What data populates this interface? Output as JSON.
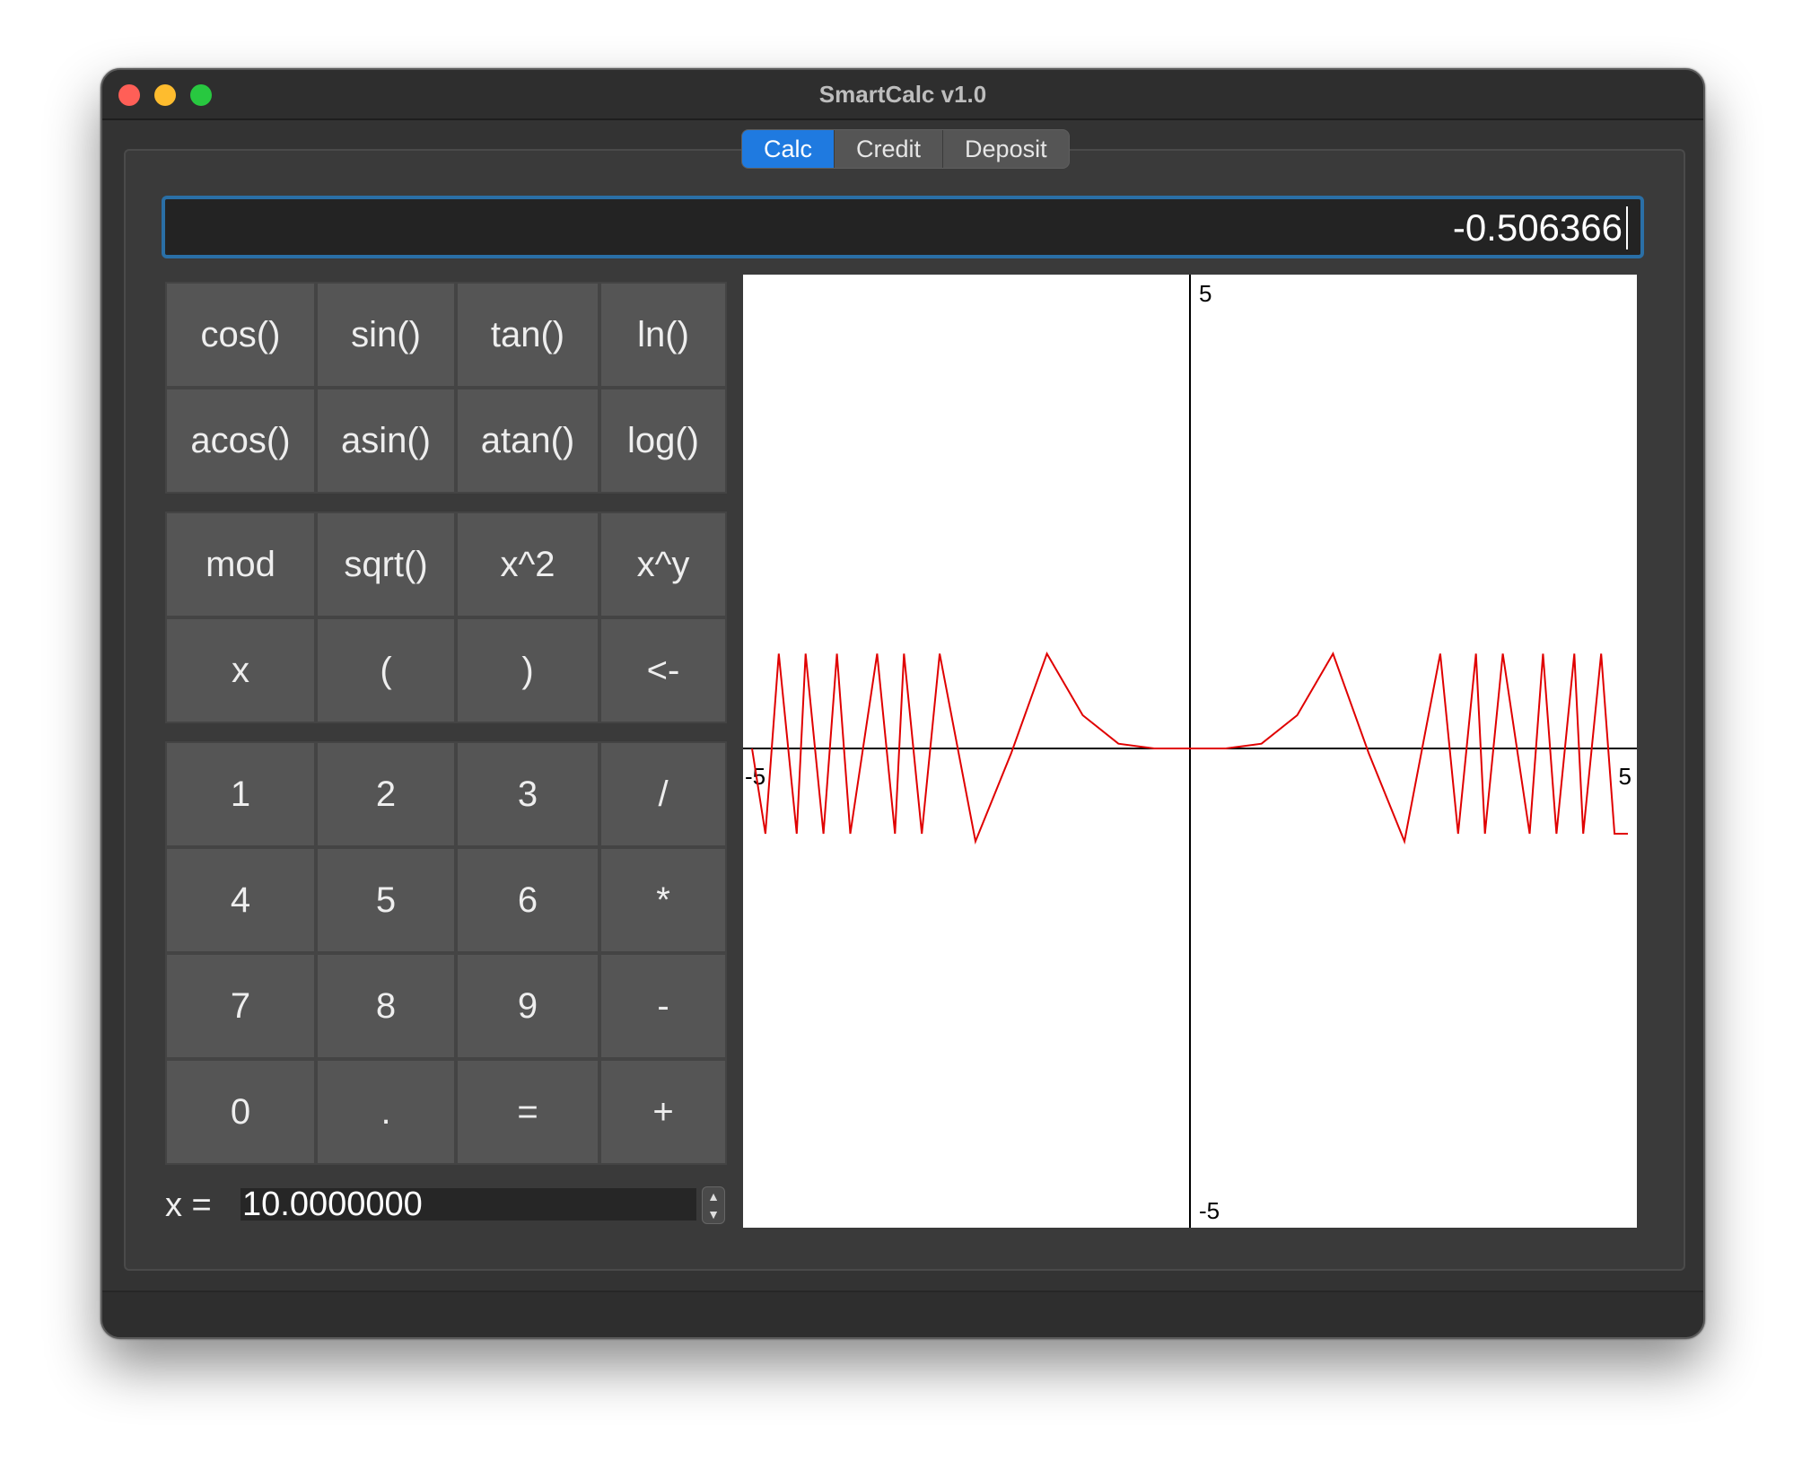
{
  "window": {
    "title": "SmartCalc v1.0"
  },
  "tabs": [
    {
      "label": "Calc",
      "active": true
    },
    {
      "label": "Credit",
      "active": false
    },
    {
      "label": "Deposit",
      "active": false
    }
  ],
  "display": {
    "value": "-0.506366"
  },
  "keypad": {
    "groups": [
      [
        [
          "cos()",
          "sin()",
          "tan()",
          "ln()"
        ],
        [
          "acos()",
          "asin()",
          "atan()",
          "log()"
        ]
      ],
      [
        [
          "mod",
          "sqrt()",
          "x^2",
          "x^y"
        ],
        [
          "x",
          "(",
          ")",
          "<-"
        ]
      ],
      [
        [
          "1",
          "2",
          "3",
          "/"
        ],
        [
          "4",
          "5",
          "6",
          "*"
        ],
        [
          "7",
          "8",
          "9",
          "-"
        ],
        [
          "0",
          ".",
          "=",
          "+"
        ]
      ]
    ]
  },
  "x_input": {
    "label": "x =",
    "value": "10.0000000"
  },
  "colors": {
    "accent": "#1f7ae0",
    "curve": "#e00000",
    "focus_border": "#2a6fa6"
  },
  "chart_data": {
    "type": "line",
    "xlim": [
      -5,
      5
    ],
    "ylim": [
      -5,
      5
    ],
    "tick_labels": {
      "x_min": "-5",
      "x_max": "5",
      "y_min": "-5",
      "y_max": "5"
    },
    "grid": false,
    "series": [
      {
        "x": [
          -4.9,
          -4.75,
          -4.6,
          -4.4,
          -4.3,
          -4.1,
          -3.95,
          -3.8,
          -3.5,
          -3.3,
          -3.2,
          -3.0,
          -2.8,
          -2.4,
          -2.0,
          -1.6,
          -1.2,
          -0.8,
          -0.4,
          0.0,
          0.4,
          0.8,
          1.2,
          1.6,
          2.0,
          2.4,
          2.8,
          3.0,
          3.2,
          3.3,
          3.5,
          3.8,
          3.95,
          4.1,
          4.3,
          4.4,
          4.6,
          4.75,
          4.9
        ],
        "y": [
          0.0,
          -0.9,
          1.0,
          -0.9,
          1.0,
          -0.9,
          1.0,
          -0.9,
          1.0,
          -0.9,
          1.0,
          -0.9,
          1.0,
          -0.98,
          -0.05,
          1.0,
          0.35,
          0.05,
          0.0,
          0.0,
          0.0,
          0.05,
          0.35,
          1.0,
          -0.05,
          -0.98,
          1.0,
          -0.9,
          1.0,
          -0.9,
          1.0,
          -0.9,
          1.0,
          -0.9,
          1.0,
          -0.9,
          1.0,
          -0.9,
          -0.9
        ]
      }
    ]
  }
}
